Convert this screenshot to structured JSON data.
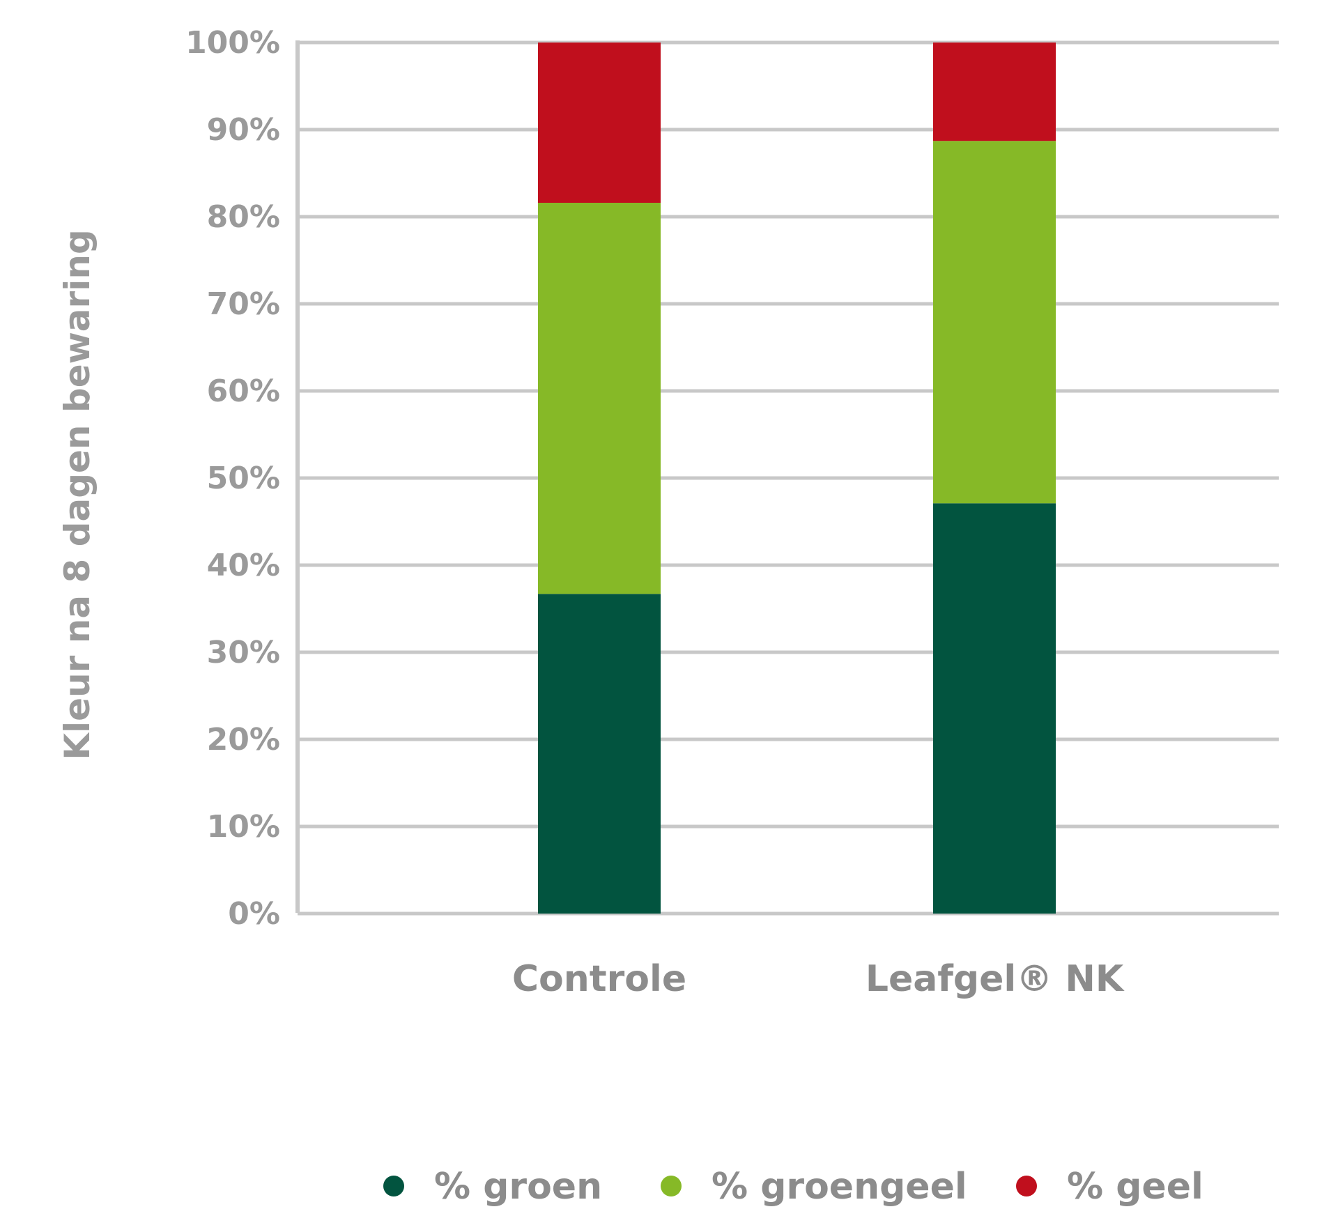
{
  "chart_data": {
    "type": "bar",
    "stacked": true,
    "categories": [
      "Controle",
      "Leafgel® NK"
    ],
    "series": [
      {
        "name": "% groen",
        "values": [
          36.7,
          47.1
        ],
        "color": "#02543f"
      },
      {
        "name": "% groengeel",
        "values": [
          44.9,
          41.6
        ],
        "color": "#86b927"
      },
      {
        "name": "% geel",
        "values": [
          18.4,
          11.3
        ],
        "color": "#c00f1d"
      }
    ],
    "ylabel": "Kleur na 8 dagen bewaring",
    "xlabel": "",
    "ylim": [
      0,
      100
    ],
    "yticks": [
      "0%",
      "10%",
      "20%",
      "30%",
      "40%",
      "50%",
      "60%",
      "70%",
      "80%",
      "90%",
      "100%"
    ],
    "grid": true,
    "legend_position": "bottom",
    "gridline_color": "#c8c8c8"
  }
}
